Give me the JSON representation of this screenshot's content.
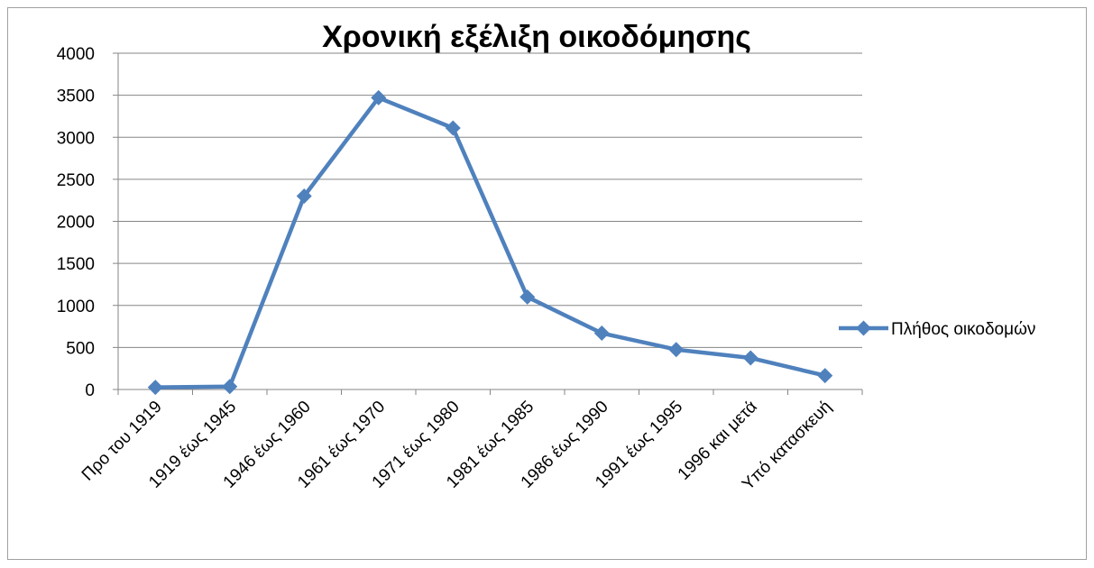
{
  "chart_data": {
    "type": "line",
    "title": "Χρονική εξέλιξη οικοδόμησης",
    "categories": [
      "Προ του 1919",
      "1919 έως 1945",
      "1946 έως 1960",
      "1961 έως 1970",
      "1971 έως 1980",
      "1981 έως 1985",
      "1986 έως 1990",
      "1991 έως 1995",
      "1996 και μετά",
      "Υπό κατασκευή"
    ],
    "series": [
      {
        "name": "Πλήθος οικοδομών",
        "color": "#4f81bd",
        "values": [
          25,
          35,
          2300,
          3470,
          3110,
          1100,
          670,
          475,
          375,
          165
        ]
      }
    ],
    "ylim": [
      0,
      4000
    ],
    "yticks": [
      0,
      500,
      1000,
      1500,
      2000,
      2500,
      3000,
      3500,
      4000
    ],
    "grid": true,
    "legend": "right"
  }
}
